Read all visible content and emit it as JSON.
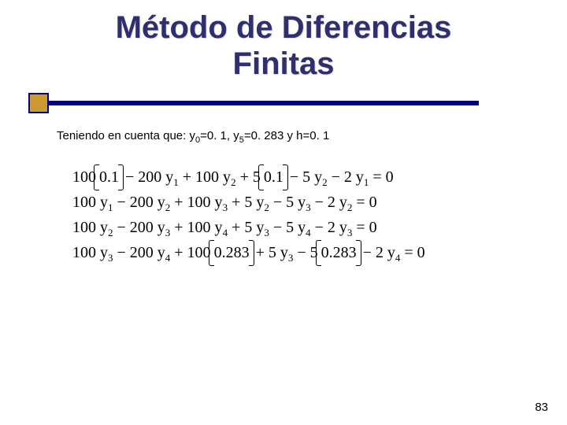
{
  "title": {
    "line1": "Método de Diferencias",
    "line2": "Finitas",
    "color": "#2f2f6f",
    "fontsize": 40
  },
  "decor": {
    "bar_color": "#000080",
    "box_fill": "#cc9933",
    "box_border": "#000080"
  },
  "subtitle": {
    "prefix": "Teniendo en cuenta que: ",
    "y0_var": "y",
    "y0_sub": "0",
    "y0_val": "=0. 1, ",
    "y5_var": "y",
    "y5_sub": "5",
    "y5_val": "=0. 283 y h=0. 1",
    "fontsize": 15
  },
  "equations": {
    "font_family": "Times New Roman",
    "fontsize": 20,
    "rows": [
      {
        "t1": "100",
        "p1": "0.1",
        "t2": " − 200 y",
        "s2": "1",
        "t3": " + 100 y",
        "s3": "2",
        "t4": " + 5",
        "p2": "0.1",
        "t5": " − 5 y",
        "s5": "2",
        "t6": " − 2 y",
        "s6": "1",
        "t7": " = 0"
      },
      {
        "t1": "100 y",
        "s1": "1",
        "t2": " − 200 y",
        "s2": "2",
        "t3": " + 100 y",
        "s3": "3",
        "t4": " + 5 y",
        "s4": "2",
        "t5": " − 5 y",
        "s5": "3",
        "t6": " − 2 y",
        "s6": "2",
        "t7": " = 0"
      },
      {
        "t1": "100 y",
        "s1": "2",
        "t2": " − 200 y",
        "s2": "3",
        "t3": " + 100 y",
        "s3": "4",
        "t4": " + 5 y",
        "s4": "3",
        "t5": " − 5 y",
        "s5": "4",
        "t6": " − 2 y",
        "s6": "3",
        "t7": " = 0"
      },
      {
        "t1": "100 y",
        "s1": "3",
        "t2": " − 200 y",
        "s2": "4",
        "t3": " + 100",
        "p1": "0.283",
        "t4": " + 5 y",
        "s4": "3",
        "t5": " − 5",
        "p2": "0.283",
        "t6": " − 2 y",
        "s6": "4",
        "t7": " = 0"
      }
    ]
  },
  "page_number": "83"
}
